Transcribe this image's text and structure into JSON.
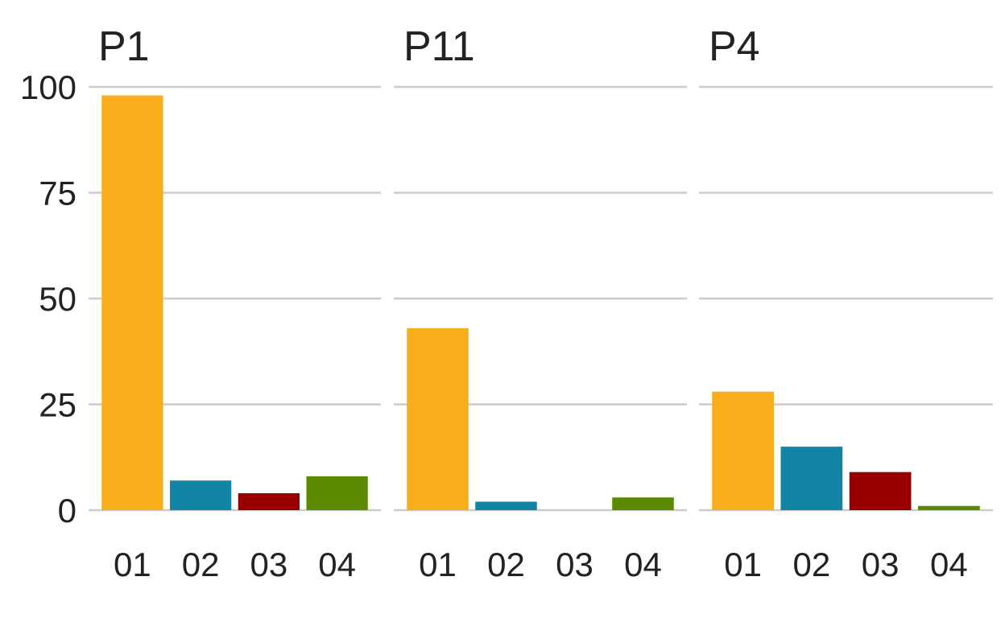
{
  "chart_data": {
    "type": "bar",
    "layout": "facets",
    "categories": [
      "01",
      "02",
      "03",
      "04"
    ],
    "colors": {
      "01": "#F8AD1A",
      "02": "#1484A6",
      "03": "#990000",
      "04": "#5A8A00"
    },
    "ylim": [
      0,
      100
    ],
    "yticks": [
      0,
      25,
      50,
      75,
      100
    ],
    "grid": true,
    "legend": "none",
    "facets": [
      {
        "title": "P1",
        "values": [
          98,
          7,
          4,
          8
        ]
      },
      {
        "title": "P11",
        "values": [
          43,
          2,
          0,
          3
        ]
      },
      {
        "title": "P4",
        "values": [
          28,
          15,
          9,
          1
        ]
      }
    ]
  }
}
